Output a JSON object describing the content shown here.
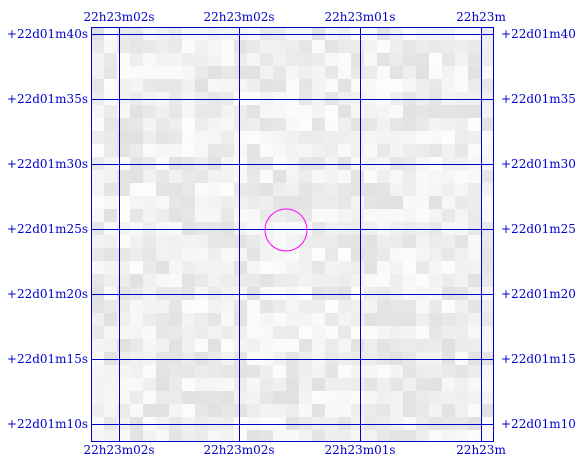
{
  "colors": {
    "grid": "#0000cc",
    "marker": "#ff00ff",
    "background": "#ffffff"
  },
  "labels": {
    "ra_top": [
      "22h23m02s",
      "22h23m02s",
      "22h23m01s",
      "22h23m"
    ],
    "ra_bottom": [
      "22h23m02s",
      "22h23m02s",
      "22h23m01s",
      "22h23m"
    ],
    "dec_left": [
      "+22d01m40s",
      "+22d01m35s",
      "+22d01m30s",
      "+22d01m25s",
      "+22d01m20s",
      "+22d01m15s",
      "+22d01m10s"
    ],
    "dec_right": [
      "+22d01m40",
      "+22d01m35",
      "+22d01m30",
      "+22d01m25",
      "+22d01m20",
      "+22d01m15",
      "+22d01m10"
    ]
  },
  "image": {
    "type": "grayscale sky cutout",
    "marker_shape": "circle"
  }
}
